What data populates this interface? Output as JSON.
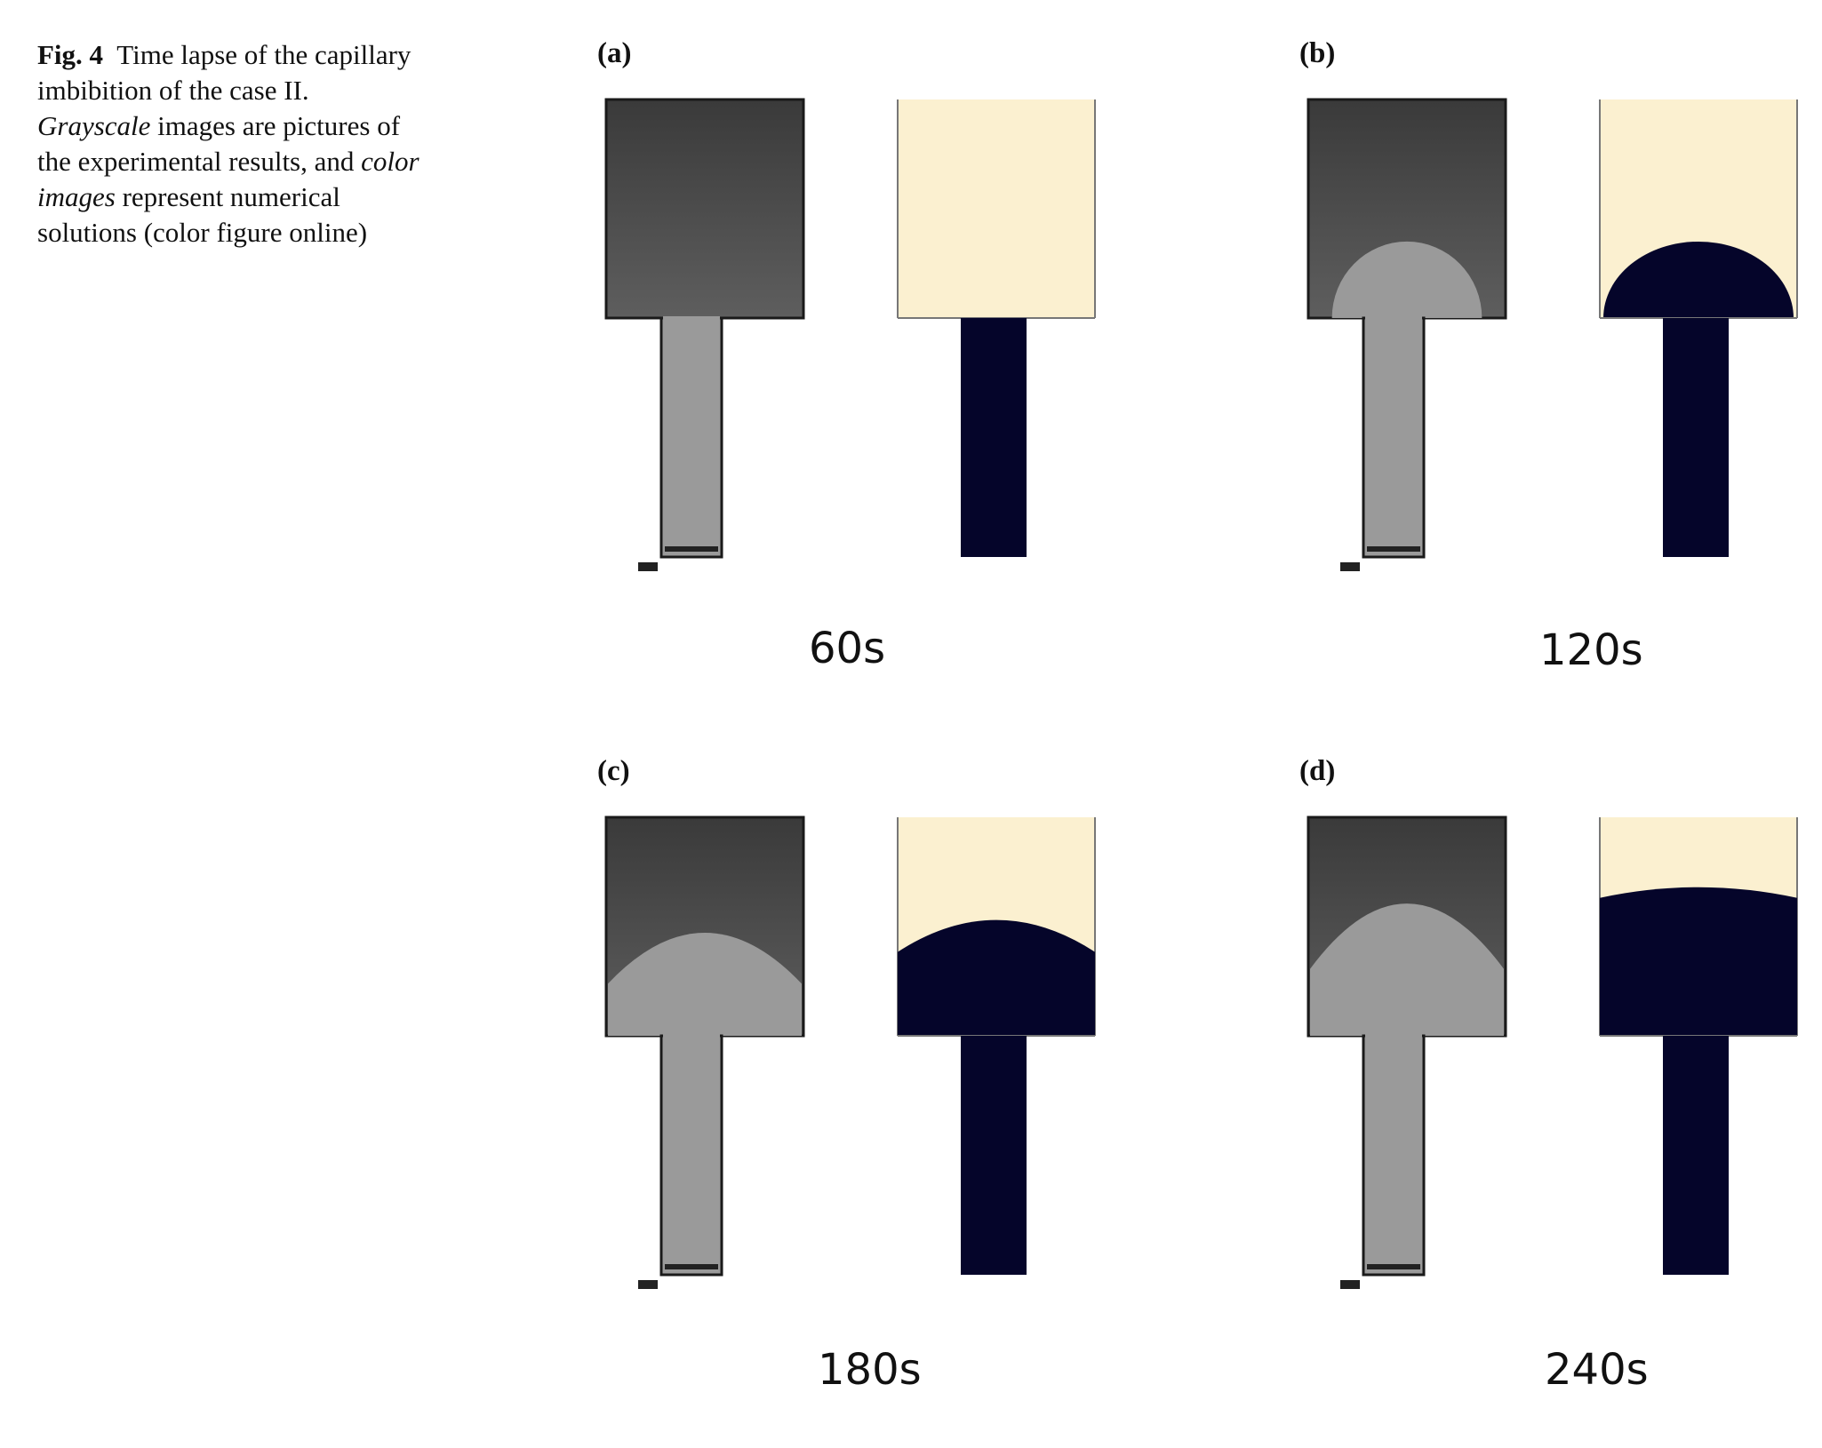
{
  "caption": {
    "fig_label": "Fig. 4",
    "part1": "Time lapse of the capillary imbibition of the case II.",
    "grayscale_em": "Grayscale",
    "part2": "images are pictures of the experimental results, and",
    "color_em": "color images",
    "part3": "represent numerical solutions (color figure online)"
  },
  "colors": {
    "cream": "#fbf0d0",
    "navy": "#05052a",
    "dry": "#4a4a4a",
    "wet": "#9a9a9a",
    "outline": "#1a1a1a"
  },
  "panels": [
    {
      "label": "(a)",
      "time": "60s",
      "front_fraction": 0.0
    },
    {
      "label": "(b)",
      "time": "120s",
      "front_fraction": 0.35
    },
    {
      "label": "(c)",
      "time": "180s",
      "front_fraction": 0.53
    },
    {
      "label": "(d)",
      "time": "240s",
      "front_fraction": 0.68
    }
  ]
}
